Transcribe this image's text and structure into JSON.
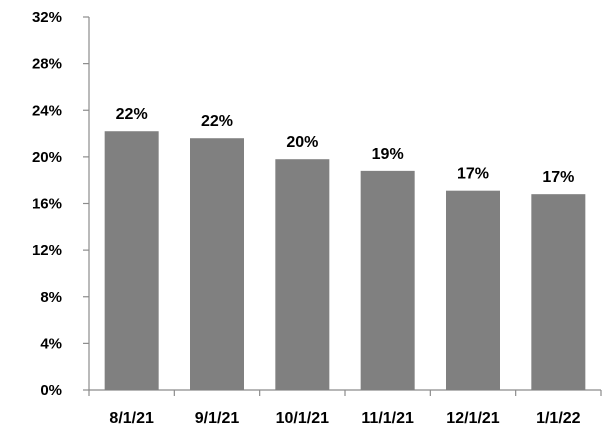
{
  "chart_data": {
    "type": "bar",
    "categories": [
      "8/1/21",
      "9/1/21",
      "10/1/21",
      "11/1/21",
      "12/1/21",
      "1/1/22"
    ],
    "values": [
      22.2,
      21.6,
      19.8,
      18.8,
      17.1,
      16.8
    ],
    "data_labels": [
      "22%",
      "22%",
      "20%",
      "19%",
      "17%",
      "17%"
    ],
    "ylim": [
      0,
      32
    ],
    "y_ticks": [
      0,
      4,
      8,
      12,
      16,
      20,
      24,
      28,
      32
    ],
    "y_tick_labels": [
      "0%",
      "4%",
      "8%",
      "12%",
      "16%",
      "20%",
      "24%",
      "28%",
      "32%"
    ],
    "bar_color": "#808080",
    "axis_color": "#8c8c8c",
    "grid": false,
    "legend": "none",
    "title": "",
    "xlabel": "",
    "ylabel": ""
  }
}
